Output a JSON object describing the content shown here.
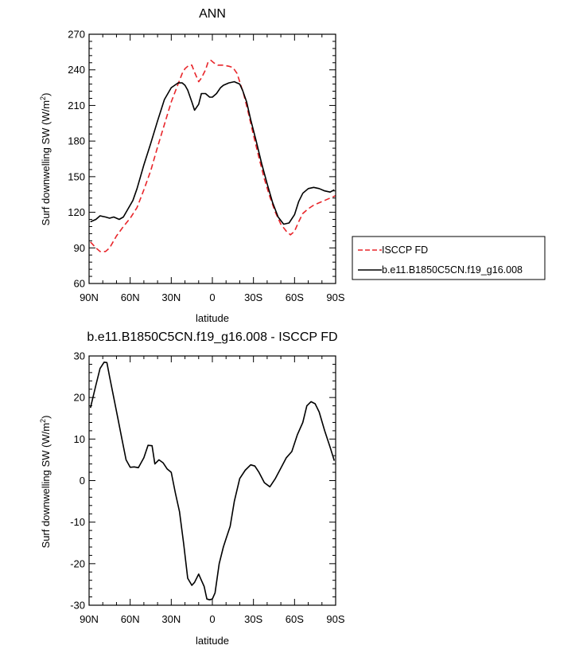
{
  "chart_data": [
    {
      "type": "line",
      "title": "ANN",
      "xlabel": "latitude",
      "ylabel": "Surf downwelling SW (W/m",
      "ylabel_sup": "2",
      "ylabel_close": ")",
      "x_ticks": [
        90,
        60,
        30,
        0,
        -30,
        -60,
        -90
      ],
      "x_tick_labels": [
        "90N",
        "60N",
        "30N",
        "0",
        "30S",
        "60S",
        "90S"
      ],
      "xlim": [
        90,
        -90
      ],
      "ylim": [
        60,
        270
      ],
      "y_ticks": [
        60,
        90,
        120,
        150,
        180,
        210,
        240,
        270
      ],
      "y_tick_labels": [
        "60",
        "90",
        "120",
        "150",
        "180",
        "210",
        "240",
        "270"
      ],
      "grid": false,
      "legend_position": "right",
      "series": [
        {
          "name": "ISCCP FD",
          "color": "#e8252a",
          "dash": "dashed",
          "x": [
            89,
            85,
            82,
            78,
            75,
            70,
            65,
            60,
            55,
            50,
            45,
            40,
            35,
            30,
            25,
            22,
            20,
            17,
            15,
            13,
            10,
            8,
            5,
            3,
            1,
            -1,
            -4,
            -8,
            -12,
            -15,
            -18,
            -20,
            -23,
            -26,
            -30,
            -34,
            -38,
            -42,
            -46,
            -50,
            -54,
            -57,
            -60,
            -63,
            -66,
            -70,
            -74,
            -78,
            -82,
            -86,
            -90
          ],
          "y": [
            95,
            90,
            87,
            87,
            90,
            100,
            108,
            115,
            124,
            139,
            155,
            175,
            194,
            213,
            228,
            237,
            241,
            244,
            244,
            238,
            230,
            233,
            240,
            247,
            248,
            246,
            244,
            244,
            243,
            242,
            237,
            230,
            219,
            205,
            185,
            166,
            148,
            133,
            120,
            110,
            104,
            101,
            104,
            112,
            119,
            123,
            126,
            128,
            130,
            132,
            134
          ]
        },
        {
          "name": "b.e11.B1850C5CN.f19_g16.008",
          "color": "#000000",
          "dash": "solid",
          "x": [
            89,
            85,
            82,
            78,
            75,
            72,
            68,
            65,
            62,
            58,
            55,
            50,
            45,
            40,
            35,
            30,
            25,
            22,
            20,
            18,
            15,
            13,
            10,
            8,
            5,
            2,
            0,
            -3,
            -6,
            -8,
            -12,
            -16,
            -20,
            -22,
            -25,
            -28,
            -32,
            -36,
            -40,
            -44,
            -48,
            -52,
            -56,
            -60,
            -63,
            -66,
            -70,
            -74,
            -78,
            -82,
            -86,
            -89
          ],
          "y": [
            112,
            114,
            117,
            116,
            115,
            116,
            114,
            116,
            122,
            130,
            140,
            160,
            178,
            197,
            215,
            225,
            229,
            229,
            227,
            223,
            213,
            206,
            211,
            220,
            220,
            217,
            217,
            220,
            225,
            227,
            229,
            230,
            228,
            223,
            213,
            198,
            180,
            161,
            144,
            128,
            116,
            110,
            111,
            118,
            129,
            136,
            140,
            141,
            140,
            138,
            137,
            139
          ]
        }
      ]
    },
    {
      "type": "line",
      "title": "b.e11.B1850C5CN.f19_g16.008 - ISCCP FD",
      "xlabel": "latitude",
      "ylabel": "Surf downwelling SW (W/m",
      "ylabel_sup": "2",
      "ylabel_close": ")",
      "x_ticks": [
        90,
        60,
        30,
        0,
        -30,
        -60,
        -90
      ],
      "x_tick_labels": [
        "90N",
        "60N",
        "30N",
        "0",
        "30S",
        "60S",
        "90S"
      ],
      "xlim": [
        90,
        -90
      ],
      "ylim": [
        -30,
        30
      ],
      "y_ticks": [
        -30,
        -20,
        -10,
        0,
        10,
        20,
        30
      ],
      "y_tick_labels": [
        "-30",
        "-20",
        "-10",
        "0",
        "10",
        "20",
        "30"
      ],
      "grid": false,
      "series": [
        {
          "color": "#000000",
          "dash": "solid",
          "x": [
            89,
            85,
            82,
            79,
            77,
            75,
            72,
            69,
            66,
            63,
            60,
            57,
            54,
            50,
            47,
            44,
            42,
            39,
            36,
            33,
            30,
            27,
            24,
            21,
            18,
            15,
            13,
            10,
            8,
            6,
            4,
            2,
            0,
            -2,
            -5,
            -8,
            -10,
            -13,
            -16,
            -20,
            -24,
            -28,
            -31,
            -34,
            -38,
            -42,
            -46,
            -50,
            -54,
            -58,
            -62,
            -66,
            -69,
            -72,
            -75,
            -78,
            -82,
            -86,
            -89
          ],
          "y": [
            17.5,
            23,
            27,
            28.5,
            28.4,
            25,
            20,
            15,
            10,
            5,
            3.2,
            3.3,
            3.1,
            5.5,
            8.5,
            8.4,
            4,
            5,
            4.3,
            2.8,
            2,
            -3,
            -7.5,
            -15,
            -23.5,
            -25.2,
            -24.5,
            -22.5,
            -24,
            -25.5,
            -28.5,
            -28.7,
            -28.5,
            -27,
            -20,
            -16,
            -14,
            -11,
            -5,
            0.5,
            2.5,
            3.8,
            3.5,
            2,
            -0.5,
            -1.5,
            0.5,
            3,
            5.5,
            7,
            11,
            14,
            18,
            19,
            18.5,
            16.5,
            12,
            8,
            4.8
          ]
        }
      ]
    }
  ]
}
